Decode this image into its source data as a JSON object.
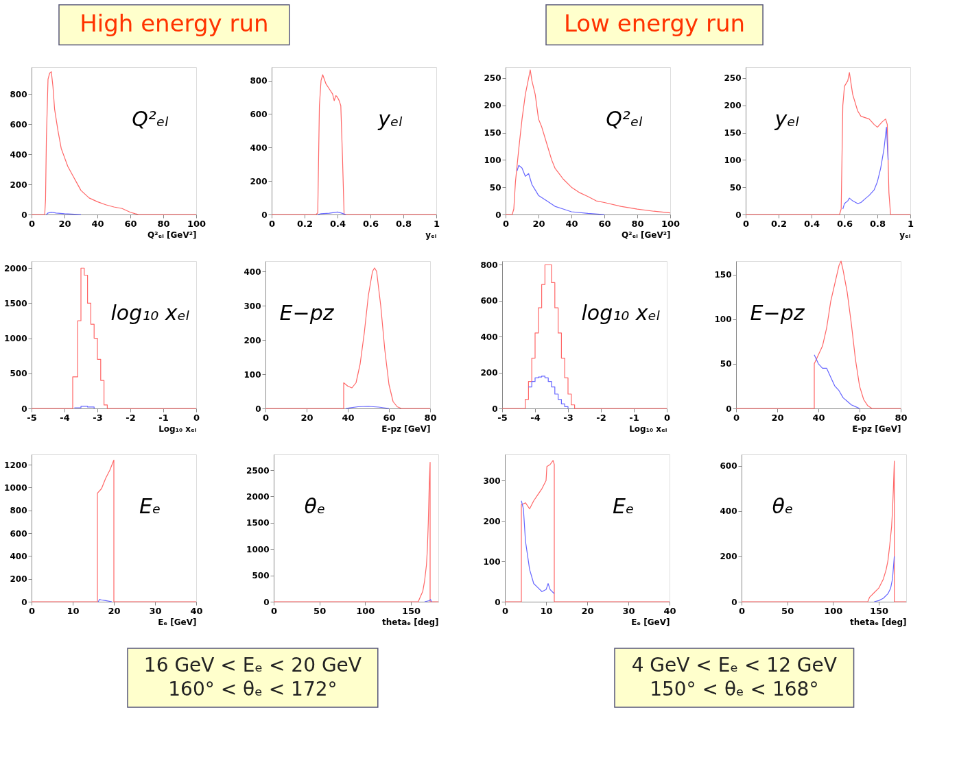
{
  "chart_data": [
    {
      "type": "other",
      "title": "High energy run"
    },
    {
      "type": "other",
      "title": "Low energy run"
    },
    {
      "type": "line",
      "xlabel": "Q²ₑₗ [GeV²]",
      "annotations": [
        "Q²ₑₗ"
      ],
      "xlim": [
        0,
        100
      ],
      "xticks": [
        0,
        20,
        40,
        60,
        80,
        100
      ],
      "ylim": [
        0,
        980
      ],
      "yticks": [
        0,
        200,
        400,
        600,
        800
      ],
      "series": [
        {
          "color": "#ff6666",
          "x": [
            0,
            8,
            8.5,
            9,
            10,
            11,
            12,
            13,
            14,
            16,
            18,
            20,
            22,
            25,
            28,
            30,
            35,
            40,
            45,
            50,
            55,
            60,
            63,
            65,
            70,
            100
          ],
          "values": [
            0,
            0,
            100,
            500,
            900,
            940,
            950,
            850,
            700,
            560,
            440,
            380,
            320,
            260,
            200,
            160,
            110,
            85,
            65,
            50,
            40,
            15,
            5,
            0,
            0,
            0
          ]
        },
        {
          "color": "#6666ff",
          "x": [
            9,
            10,
            12,
            15,
            20,
            30
          ],
          "values": [
            0,
            10,
            15,
            10,
            5,
            0
          ]
        }
      ]
    },
    {
      "type": "line",
      "xlabel": "yₑₗ",
      "annotations": [
        "yₑₗ"
      ],
      "xlim": [
        0,
        1
      ],
      "xticks": [
        0,
        0.2,
        0.4,
        0.6,
        0.8,
        1
      ],
      "ylim": [
        0,
        880
      ],
      "yticks": [
        0,
        200,
        400,
        600,
        800
      ],
      "series": [
        {
          "color": "#ff6666",
          "x": [
            0,
            0.27,
            0.28,
            0.29,
            0.3,
            0.31,
            0.33,
            0.35,
            0.37,
            0.38,
            0.39,
            0.4,
            0.41,
            0.42,
            0.43,
            0.44,
            1
          ],
          "values": [
            0,
            0,
            10,
            650,
            800,
            835,
            780,
            750,
            720,
            680,
            710,
            700,
            680,
            650,
            350,
            0,
            0
          ]
        },
        {
          "color": "#6666ff",
          "x": [
            0.28,
            0.3,
            0.35,
            0.4,
            0.42,
            0.45
          ],
          "values": [
            0,
            5,
            8,
            15,
            10,
            0
          ]
        }
      ]
    },
    {
      "type": "line",
      "xlabel": "Q²ₑₗ [GeV²]",
      "annotations": [
        "Q²ₑₗ"
      ],
      "xlim": [
        0,
        100
      ],
      "xticks": [
        0,
        20,
        40,
        60,
        80,
        100
      ],
      "ylim": [
        0,
        270
      ],
      "yticks": [
        0,
        50,
        100,
        150,
        200,
        250
      ],
      "series": [
        {
          "color": "#ff6666",
          "x": [
            0,
            4,
            5,
            6,
            8,
            10,
            12,
            14,
            15,
            16,
            18,
            20,
            22,
            25,
            28,
            30,
            35,
            40,
            45,
            50,
            55,
            60,
            70,
            80,
            90,
            100
          ],
          "values": [
            0,
            0,
            10,
            60,
            120,
            175,
            220,
            250,
            265,
            245,
            220,
            175,
            160,
            130,
            100,
            85,
            65,
            50,
            40,
            33,
            25,
            22,
            15,
            10,
            6,
            3
          ]
        },
        {
          "color": "#6666ff",
          "x": [
            7,
            8,
            10,
            12,
            14,
            16,
            18,
            20,
            25,
            30,
            35,
            40,
            50,
            60
          ],
          "values": [
            80,
            90,
            85,
            70,
            75,
            55,
            45,
            35,
            25,
            15,
            10,
            5,
            2,
            0
          ]
        }
      ]
    },
    {
      "type": "line",
      "xlabel": "yₑₗ",
      "annotations": [
        "yₑₗ"
      ],
      "xlim": [
        0,
        1
      ],
      "xticks": [
        0,
        0.2,
        0.4,
        0.6,
        0.8,
        1
      ],
      "ylim": [
        0,
        270
      ],
      "yticks": [
        0,
        50,
        100,
        150,
        200,
        250
      ],
      "series": [
        {
          "color": "#ff6666",
          "x": [
            0,
            0.57,
            0.58,
            0.59,
            0.6,
            0.62,
            0.63,
            0.65,
            0.68,
            0.7,
            0.75,
            0.78,
            0.8,
            0.83,
            0.85,
            0.86,
            0.87,
            0.88,
            1
          ],
          "values": [
            0,
            0,
            10,
            200,
            235,
            245,
            260,
            220,
            190,
            180,
            175,
            165,
            160,
            170,
            175,
            165,
            40,
            0,
            0
          ]
        },
        {
          "color": "#6666ff",
          "x": [
            0.59,
            0.6,
            0.62,
            0.63,
            0.65,
            0.68,
            0.7,
            0.73,
            0.75,
            0.78,
            0.8,
            0.82,
            0.84,
            0.855,
            0.865
          ],
          "values": [
            10,
            20,
            25,
            30,
            25,
            20,
            22,
            30,
            35,
            45,
            60,
            85,
            120,
            160,
            100
          ]
        }
      ]
    },
    {
      "type": "step",
      "xlabel": "Log₁₀ xₑₗ",
      "annotations": [
        "log₁₀ xₑₗ"
      ],
      "xlim": [
        -5,
        0
      ],
      "xticks": [
        -5,
        -4,
        -3,
        -2,
        -1,
        0
      ],
      "ylim": [
        0,
        2100
      ],
      "yticks": [
        0,
        500,
        1000,
        1500,
        2000
      ],
      "series": [
        {
          "color": "#ff6666",
          "x": [
            -5,
            -3.75,
            -3.6,
            -3.5,
            -3.4,
            -3.3,
            -3.2,
            -3.1,
            -3.0,
            -2.9,
            -2.8,
            -2.7,
            0
          ],
          "values": [
            0,
            450,
            1250,
            2000,
            1900,
            1500,
            1200,
            1000,
            700,
            400,
            50,
            0,
            0
          ]
        },
        {
          "color": "#6666ff",
          "x": [
            -3.7,
            -3.5,
            -3.3,
            -3.1
          ],
          "values": [
            10,
            30,
            20,
            0
          ]
        }
      ]
    },
    {
      "type": "line",
      "xlabel": "E-pz [GeV]",
      "annotations": [
        "E−pz"
      ],
      "xlim": [
        0,
        80
      ],
      "xticks": [
        0,
        20,
        40,
        60,
        80
      ],
      "ylim": [
        0,
        430
      ],
      "yticks": [
        0,
        100,
        200,
        300,
        400
      ],
      "series": [
        {
          "color": "#ff6666",
          "x": [
            0,
            38,
            38,
            40,
            42,
            44,
            46,
            48,
            50,
            52,
            53,
            54,
            56,
            58,
            60,
            62,
            64,
            66,
            80
          ],
          "values": [
            0,
            0,
            75,
            65,
            60,
            75,
            130,
            220,
            330,
            400,
            410,
            400,
            300,
            170,
            70,
            20,
            5,
            0,
            0
          ]
        },
        {
          "color": "#6666ff",
          "x": [
            39,
            45,
            50,
            55,
            60
          ],
          "values": [
            0,
            5,
            6,
            4,
            0
          ]
        }
      ]
    },
    {
      "type": "step",
      "xlabel": "Log₁₀ xₑₗ",
      "annotations": [
        "log₁₀ xₑₗ"
      ],
      "xlim": [
        -5,
        0
      ],
      "xticks": [
        -5,
        -4,
        -3,
        -2,
        -1,
        0
      ],
      "ylim": [
        0,
        820
      ],
      "yticks": [
        0,
        200,
        400,
        600,
        800
      ],
      "series": [
        {
          "color": "#ff6666",
          "x": [
            -5,
            -4.3,
            -4.2,
            -4.1,
            -4.0,
            -3.9,
            -3.8,
            -3.7,
            -3.6,
            -3.5,
            -3.4,
            -3.3,
            -3.2,
            -3.1,
            -3.0,
            -2.9,
            -2.8,
            0
          ],
          "values": [
            0,
            50,
            150,
            280,
            420,
            560,
            690,
            800,
            800,
            700,
            560,
            420,
            280,
            170,
            80,
            20,
            0,
            0
          ]
        },
        {
          "color": "#6666ff",
          "x": [
            -4.2,
            -4.1,
            -4.0,
            -3.9,
            -3.8,
            -3.7,
            -3.6,
            -3.5,
            -3.4,
            -3.3,
            -3.2,
            -3.1,
            -3.0
          ],
          "values": [
            120,
            150,
            170,
            175,
            180,
            170,
            150,
            120,
            80,
            50,
            25,
            10,
            0
          ]
        }
      ]
    },
    {
      "type": "line",
      "xlabel": "E-pz [GeV]",
      "annotations": [
        "E−pz"
      ],
      "xlim": [
        0,
        80
      ],
      "xticks": [
        0,
        20,
        40,
        60,
        80
      ],
      "ylim": [
        0,
        165
      ],
      "yticks": [
        0,
        50,
        100,
        150
      ],
      "series": [
        {
          "color": "#ff6666",
          "x": [
            0,
            38,
            38,
            40,
            42,
            44,
            46,
            48,
            50,
            51,
            52,
            54,
            56,
            58,
            60,
            62,
            64,
            66,
            80
          ],
          "values": [
            0,
            0,
            50,
            60,
            70,
            90,
            120,
            140,
            160,
            165,
            155,
            130,
            95,
            55,
            25,
            10,
            3,
            0,
            0
          ]
        },
        {
          "color": "#6666ff",
          "x": [
            38,
            40,
            42,
            44,
            46,
            48,
            50,
            52,
            54,
            56,
            58,
            60
          ],
          "values": [
            60,
            50,
            45,
            45,
            35,
            25,
            20,
            12,
            8,
            4,
            2,
            0
          ]
        }
      ]
    },
    {
      "type": "line",
      "xlabel": "Eₑ [GeV]",
      "annotations": [
        "Eₑ"
      ],
      "xlim": [
        0,
        40
      ],
      "xticks": [
        0,
        10,
        20,
        30,
        40
      ],
      "ylim": [
        0,
        1290
      ],
      "yticks": [
        0,
        200,
        400,
        600,
        800,
        1000,
        1200
      ],
      "series": [
        {
          "color": "#ff6666",
          "x": [
            0,
            16,
            16,
            17,
            18,
            19,
            20,
            20,
            40
          ],
          "values": [
            0,
            0,
            950,
            990,
            1080,
            1150,
            1240,
            0,
            0
          ]
        },
        {
          "color": "#6666ff",
          "x": [
            16.2,
            16.5,
            17,
            18,
            19.5
          ],
          "values": [
            0,
            20,
            15,
            10,
            0
          ]
        }
      ]
    },
    {
      "type": "line",
      "xlabel": "thetaₑ [deg]",
      "annotations": [
        "θₑ"
      ],
      "xlim": [
        0,
        180
      ],
      "xticks": [
        0,
        50,
        100,
        150
      ],
      "ylim": [
        0,
        2800
      ],
      "yticks": [
        0,
        500,
        1000,
        1500,
        2000,
        2500
      ],
      "series": [
        {
          "color": "#ff6666",
          "x": [
            0,
            158,
            160,
            163,
            165,
            167,
            168,
            169,
            170,
            171,
            171,
            180
          ],
          "values": [
            0,
            0,
            80,
            200,
            400,
            700,
            1000,
            1500,
            2200,
            2650,
            0,
            0
          ]
        },
        {
          "color": "#6666ff",
          "x": [
            165,
            170,
            171.5,
            172.5
          ],
          "values": [
            0,
            20,
            40,
            0
          ]
        }
      ]
    },
    {
      "type": "line",
      "xlabel": "Eₑ [GeV]",
      "annotations": [
        "Eₑ"
      ],
      "xlim": [
        0,
        40
      ],
      "xticks": [
        0,
        10,
        20,
        30,
        40
      ],
      "ylim": [
        0,
        365
      ],
      "yticks": [
        0,
        100,
        200,
        300
      ],
      "series": [
        {
          "color": "#ff6666",
          "x": [
            0,
            4,
            4,
            5,
            6,
            7,
            8,
            9,
            10,
            10.2,
            11,
            11.7,
            12,
            12,
            40
          ],
          "values": [
            0,
            0,
            240,
            245,
            230,
            250,
            265,
            280,
            300,
            335,
            340,
            350,
            340,
            0,
            0
          ]
        },
        {
          "color": "#6666ff",
          "x": [
            4,
            4.5,
            5,
            6,
            7,
            8,
            9,
            10,
            10.5,
            11,
            12
          ],
          "values": [
            250,
            230,
            150,
            80,
            45,
            35,
            25,
            30,
            45,
            30,
            20
          ]
        }
      ]
    },
    {
      "type": "line",
      "xlabel": "thetaₑ [deg]",
      "annotations": [
        "θₑ"
      ],
      "xlim": [
        0,
        180
      ],
      "xticks": [
        0,
        50,
        100,
        150
      ],
      "ylim": [
        0,
        650
      ],
      "yticks": [
        0,
        200,
        400,
        600
      ],
      "series": [
        {
          "color": "#ff6666",
          "x": [
            0,
            138,
            140,
            145,
            150,
            155,
            158,
            160,
            162,
            164,
            165,
            166,
            167,
            167,
            180
          ],
          "values": [
            0,
            0,
            20,
            40,
            60,
            100,
            140,
            180,
            250,
            330,
            400,
            500,
            620,
            0,
            0
          ]
        },
        {
          "color": "#6666ff",
          "x": [
            145,
            150,
            155,
            160,
            163,
            165,
            166,
            167
          ],
          "values": [
            0,
            5,
            15,
            35,
            60,
            100,
            150,
            200
          ]
        }
      ]
    },
    {
      "type": "other",
      "annotations": [
        "16 GeV < Eₑ < 20 GeV",
        "160° < θₑ < 172°"
      ]
    },
    {
      "type": "other",
      "annotations": [
        "4 GeV < Eₑ < 12 GeV",
        "150° < θₑ < 168°"
      ]
    }
  ]
}
